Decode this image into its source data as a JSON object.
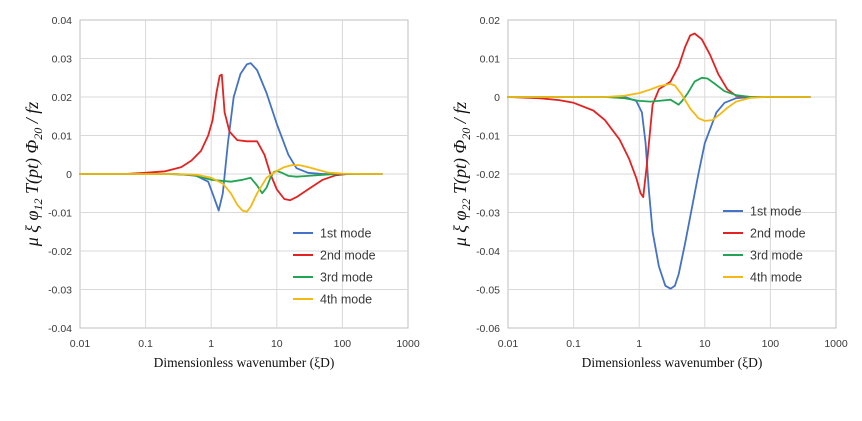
{
  "chart_data": [
    {
      "type": "line",
      "x_scale": "log",
      "xlim": [
        0.01,
        1000
      ],
      "ylim": [
        -0.04,
        0.04
      ],
      "x_ticks": [
        "0.01",
        "0.1",
        "1",
        "10",
        "100",
        "1000"
      ],
      "y_ticks": [
        "0.04",
        "0.03",
        "0.02",
        "0.01",
        "0",
        "-0.01",
        "-0.02",
        "-0.03",
        "-0.04"
      ],
      "xlabel": "Dimensionless wavenumber (ξD)",
      "ylabel": "μ ξ φ12 T(pt) Φ20 / fz",
      "grid": true,
      "legend_position": "bottom-right",
      "series": [
        {
          "name": "1st mode",
          "color": "#4472c4",
          "x": [
            0.01,
            0.3,
            0.6,
            0.9,
            1.1,
            1.3,
            1.5,
            1.8,
            2.2,
            2.8,
            3.5,
            4.0,
            5.0,
            7.0,
            10,
            15,
            20,
            30,
            50,
            100
          ],
          "y": [
            0,
            0,
            -0.0005,
            -0.002,
            -0.006,
            -0.0095,
            -0.005,
            0.008,
            0.02,
            0.026,
            0.0285,
            0.0288,
            0.027,
            0.021,
            0.013,
            0.005,
            0.0015,
            0.0003,
            0,
            0
          ]
        },
        {
          "name": "2nd mode",
          "color": "#e32222",
          "x": [
            0.01,
            0.05,
            0.1,
            0.2,
            0.35,
            0.5,
            0.7,
            0.9,
            1.05,
            1.2,
            1.35,
            1.45,
            1.6,
            1.9,
            2.5,
            3.5,
            5,
            6.5,
            8,
            10,
            13,
            16,
            20,
            30,
            50,
            80,
            120,
            200,
            400
          ],
          "y": [
            0,
            0,
            0.0003,
            0.0007,
            0.0018,
            0.0035,
            0.006,
            0.01,
            0.014,
            0.021,
            0.0255,
            0.0258,
            0.016,
            0.011,
            0.0088,
            0.0085,
            0.0085,
            0.005,
            0,
            -0.004,
            -0.0065,
            -0.0068,
            -0.006,
            -0.004,
            -0.0015,
            -0.0003,
            0,
            0,
            0
          ]
        },
        {
          "name": "3rd mode",
          "color": "#23a455",
          "x": [
            0.01,
            0.2,
            0.5,
            1,
            2,
            3,
            4,
            5,
            6,
            7,
            8,
            9,
            10,
            12,
            15,
            20,
            30,
            50,
            80,
            100,
            200,
            400
          ],
          "y": [
            0,
            0,
            -0.0002,
            -0.0015,
            -0.002,
            -0.0015,
            -0.001,
            -0.003,
            -0.005,
            -0.0035,
            -0.001,
            0.0005,
            0.0008,
            0.0003,
            -0.0005,
            -0.0007,
            -0.0005,
            -0.0002,
            0,
            0,
            0,
            0
          ]
        },
        {
          "name": "4th mode",
          "color": "#f4b912",
          "x": [
            0.01,
            0.3,
            0.6,
            1,
            1.5,
            2,
            2.5,
            3,
            3.5,
            4,
            5,
            7,
            10,
            13,
            17,
            22,
            30,
            40,
            60,
            100,
            200,
            400
          ],
          "y": [
            0,
            0,
            -0.0002,
            -0.001,
            -0.0025,
            -0.005,
            -0.008,
            -0.0095,
            -0.0098,
            -0.0085,
            -0.005,
            -0.001,
            0.0008,
            0.0018,
            0.0023,
            0.0023,
            0.0018,
            0.0012,
            0.0004,
            0.0001,
            0,
            0
          ]
        }
      ]
    },
    {
      "type": "line",
      "x_scale": "log",
      "xlim": [
        0.01,
        1000
      ],
      "ylim": [
        -0.06,
        0.02
      ],
      "x_ticks": [
        "0.01",
        "0.1",
        "1",
        "10",
        "100",
        "1000"
      ],
      "y_ticks": [
        "0.02",
        "0.01",
        "0",
        "-0.01",
        "-0.02",
        "-0.03",
        "-0.04",
        "-0.05",
        "-0.06"
      ],
      "xlabel": "Dimensionless wavenumber (ξD)",
      "ylabel": "μ ξ φ22 T(pt) Φ20 / fz",
      "grid": true,
      "legend_position": "bottom-right",
      "series": [
        {
          "name": "1st mode",
          "color": "#4472c4",
          "x": [
            0.01,
            0.3,
            0.6,
            0.9,
            1.1,
            1.25,
            1.4,
            1.6,
            2.0,
            2.5,
            3.0,
            3.5,
            4.0,
            5.0,
            6.5,
            8,
            10,
            15,
            20,
            30,
            50,
            100,
            150,
            200,
            400
          ],
          "y": [
            0,
            0,
            0,
            -0.001,
            -0.004,
            -0.012,
            -0.024,
            -0.035,
            -0.044,
            -0.049,
            -0.0498,
            -0.049,
            -0.046,
            -0.038,
            -0.028,
            -0.02,
            -0.012,
            -0.004,
            -0.0015,
            -0.0003,
            0,
            0,
            0,
            0,
            0
          ]
        },
        {
          "name": "2nd mode",
          "color": "#e32222",
          "x": [
            0.01,
            0.03,
            0.06,
            0.1,
            0.2,
            0.3,
            0.5,
            0.7,
            0.9,
            1.05,
            1.15,
            1.3,
            1.6,
            2,
            3,
            4,
            5,
            6,
            7,
            9,
            12,
            16,
            22,
            30,
            50,
            80,
            150,
            400
          ],
          "y": [
            0,
            -0.0003,
            -0.0008,
            -0.0015,
            -0.0035,
            -0.006,
            -0.011,
            -0.016,
            -0.021,
            -0.025,
            -0.026,
            -0.018,
            -0.002,
            0.002,
            0.004,
            0.008,
            0.013,
            0.016,
            0.0165,
            0.015,
            0.011,
            0.006,
            0.002,
            0.0003,
            0,
            0,
            0,
            0
          ]
        },
        {
          "name": "3rd mode",
          "color": "#23a455",
          "x": [
            0.01,
            0.3,
            0.6,
            1,
            1.5,
            2,
            3,
            4,
            4.5,
            5.5,
            7,
            9,
            11,
            14,
            20,
            30,
            50,
            80,
            150,
            400
          ],
          "y": [
            0,
            0,
            -0.0003,
            -0.001,
            -0.0012,
            -0.001,
            -0.0007,
            -0.002,
            -0.001,
            0.001,
            0.004,
            0.005,
            0.0048,
            0.0035,
            0.0015,
            0.0005,
            0,
            0,
            0,
            0
          ]
        },
        {
          "name": "4th mode",
          "color": "#f4b912",
          "x": [
            0.01,
            0.3,
            0.6,
            1,
            1.5,
            2,
            3,
            3.5,
            4.5,
            6,
            8,
            10,
            13,
            17,
            22,
            30,
            50,
            80,
            150,
            400
          ],
          "y": [
            0,
            0,
            0.0003,
            0.001,
            0.002,
            0.0028,
            0.0034,
            0.003,
            0.0005,
            -0.003,
            -0.0055,
            -0.0062,
            -0.006,
            -0.0045,
            -0.0028,
            -0.0012,
            -0.0002,
            0,
            0,
            0
          ]
        }
      ]
    }
  ]
}
